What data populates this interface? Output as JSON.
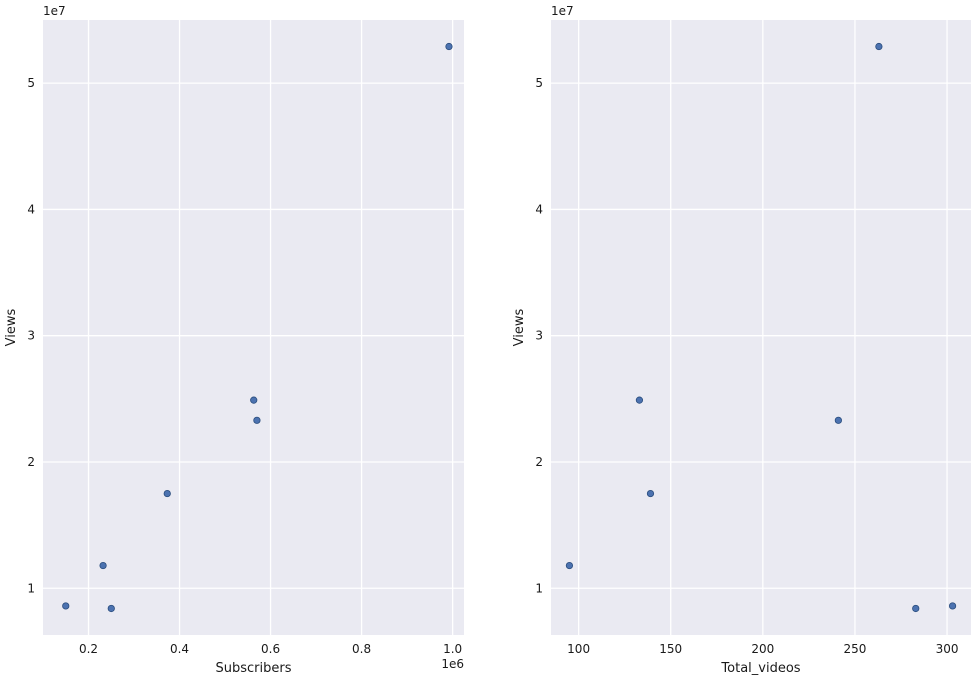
{
  "style": {
    "axes_bg": "#eaeaf2",
    "grid": "#ffffff",
    "marker": "#4c72b0",
    "marker_edge": "#2a4d7e"
  },
  "chart_data": [
    {
      "type": "scatter",
      "xlabel": "Subscribers",
      "ylabel": "Views",
      "x_offset_label": "1e6",
      "y_offset_label": "1e7",
      "grid": true,
      "xlim": [
        0.1,
        1.025
      ],
      "ylim": [
        0.63,
        5.5
      ],
      "xticks": [
        0.2,
        0.4,
        0.6,
        0.8,
        1.0
      ],
      "xtick_labels": [
        "0.2",
        "0.4",
        "0.6",
        "0.8",
        "1.0"
      ],
      "yticks": [
        1,
        2,
        3,
        4,
        5
      ],
      "ytick_labels": [
        "1",
        "2",
        "3",
        "4",
        "5"
      ],
      "points": [
        {
          "x": 0.15,
          "y": 0.86
        },
        {
          "x": 0.232,
          "y": 1.18
        },
        {
          "x": 0.25,
          "y": 0.84
        },
        {
          "x": 0.373,
          "y": 1.75
        },
        {
          "x": 0.563,
          "y": 2.49
        },
        {
          "x": 0.57,
          "y": 2.33
        },
        {
          "x": 0.992,
          "y": 5.29
        }
      ]
    },
    {
      "type": "scatter",
      "xlabel": "Total_videos",
      "ylabel": "Views",
      "y_offset_label": "1e7",
      "grid": true,
      "xlim": [
        85,
        313
      ],
      "ylim": [
        0.63,
        5.5
      ],
      "xticks": [
        100,
        150,
        200,
        250,
        300
      ],
      "xtick_labels": [
        "100",
        "150",
        "200",
        "250",
        "300"
      ],
      "yticks": [
        1,
        2,
        3,
        4,
        5
      ],
      "ytick_labels": [
        "1",
        "2",
        "3",
        "4",
        "5"
      ],
      "points": [
        {
          "x": 95,
          "y": 1.18
        },
        {
          "x": 133,
          "y": 2.49
        },
        {
          "x": 139,
          "y": 1.75
        },
        {
          "x": 241,
          "y": 2.33
        },
        {
          "x": 263,
          "y": 5.29
        },
        {
          "x": 283,
          "y": 0.84
        },
        {
          "x": 303,
          "y": 0.86
        }
      ]
    }
  ]
}
